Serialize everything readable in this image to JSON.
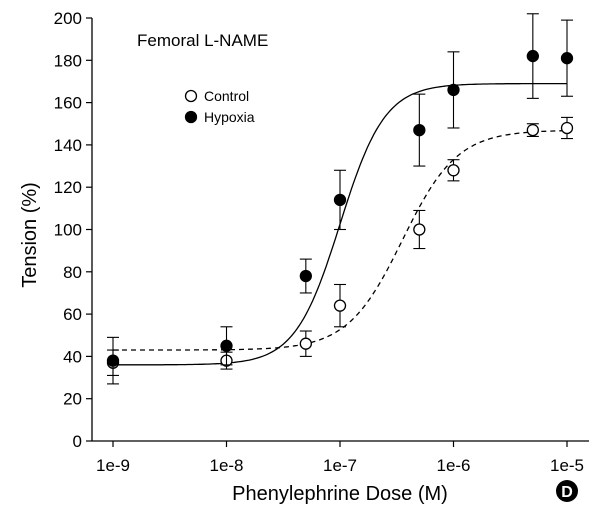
{
  "chart_data": {
    "type": "scatter",
    "title": "Femoral L-NAME",
    "xlabel": "Phenylephrine Dose (M)",
    "ylabel": "Tension (%)",
    "x_scale": "log",
    "xlim": [
      1e-09,
      1e-05
    ],
    "ylim": [
      0,
      200
    ],
    "x_ticks": [
      1e-09,
      1e-08,
      1e-07,
      1e-06,
      1e-05
    ],
    "x_tick_labels": [
      "1e-9",
      "1e-8",
      "1e-7",
      "1e-6",
      "1e-5"
    ],
    "y_ticks": [
      0,
      20,
      40,
      60,
      80,
      100,
      120,
      140,
      160,
      180,
      200
    ],
    "y_tick_labels": [
      "0",
      "20",
      "40",
      "60",
      "80",
      "100",
      "120",
      "140",
      "160",
      "180",
      "200"
    ],
    "grid": false,
    "legend_position": "upper-left",
    "panel_label": "D",
    "series": [
      {
        "name": "Control",
        "marker": "open-circle",
        "line_style": "dashed",
        "color": "#000000",
        "x": [
          1e-09,
          1e-08,
          5e-08,
          1e-07,
          5e-07,
          1e-06,
          5e-06,
          1e-05
        ],
        "y": [
          37,
          38,
          46,
          64,
          100,
          128,
          147,
          148
        ],
        "error": [
          6,
          4,
          6,
          10,
          9,
          5,
          3,
          5
        ],
        "fit": {
          "bottom": 43,
          "top": 147,
          "log_ec50": -6.45,
          "hill": 1.8
        }
      },
      {
        "name": "Hypoxia",
        "marker": "filled-circle",
        "line_style": "solid",
        "color": "#000000",
        "x": [
          1e-09,
          1e-08,
          5e-08,
          1e-07,
          5e-07,
          1e-06,
          5e-06,
          1e-05
        ],
        "y": [
          38,
          45,
          78,
          114,
          147,
          166,
          182,
          181
        ],
        "error": [
          11,
          9,
          8,
          14,
          17,
          18,
          20,
          18
        ],
        "fit": {
          "bottom": 36,
          "top": 169,
          "log_ec50": -7.0,
          "hill": 2.2
        }
      }
    ]
  }
}
